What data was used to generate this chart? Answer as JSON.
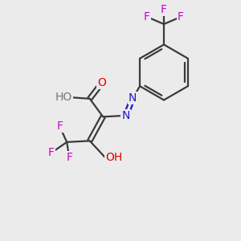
{
  "bg_color": "#ebebeb",
  "bond_color": "#3a3a3a",
  "oxygen_color": "#dd0000",
  "nitrogen_color": "#1a1acc",
  "fluorine_color": "#cc00cc",
  "hydrogen_color": "#777777",
  "line_width": 1.6,
  "font_size_atom": 10.0,
  "xlim": [
    0,
    10
  ],
  "ylim": [
    0,
    10
  ]
}
